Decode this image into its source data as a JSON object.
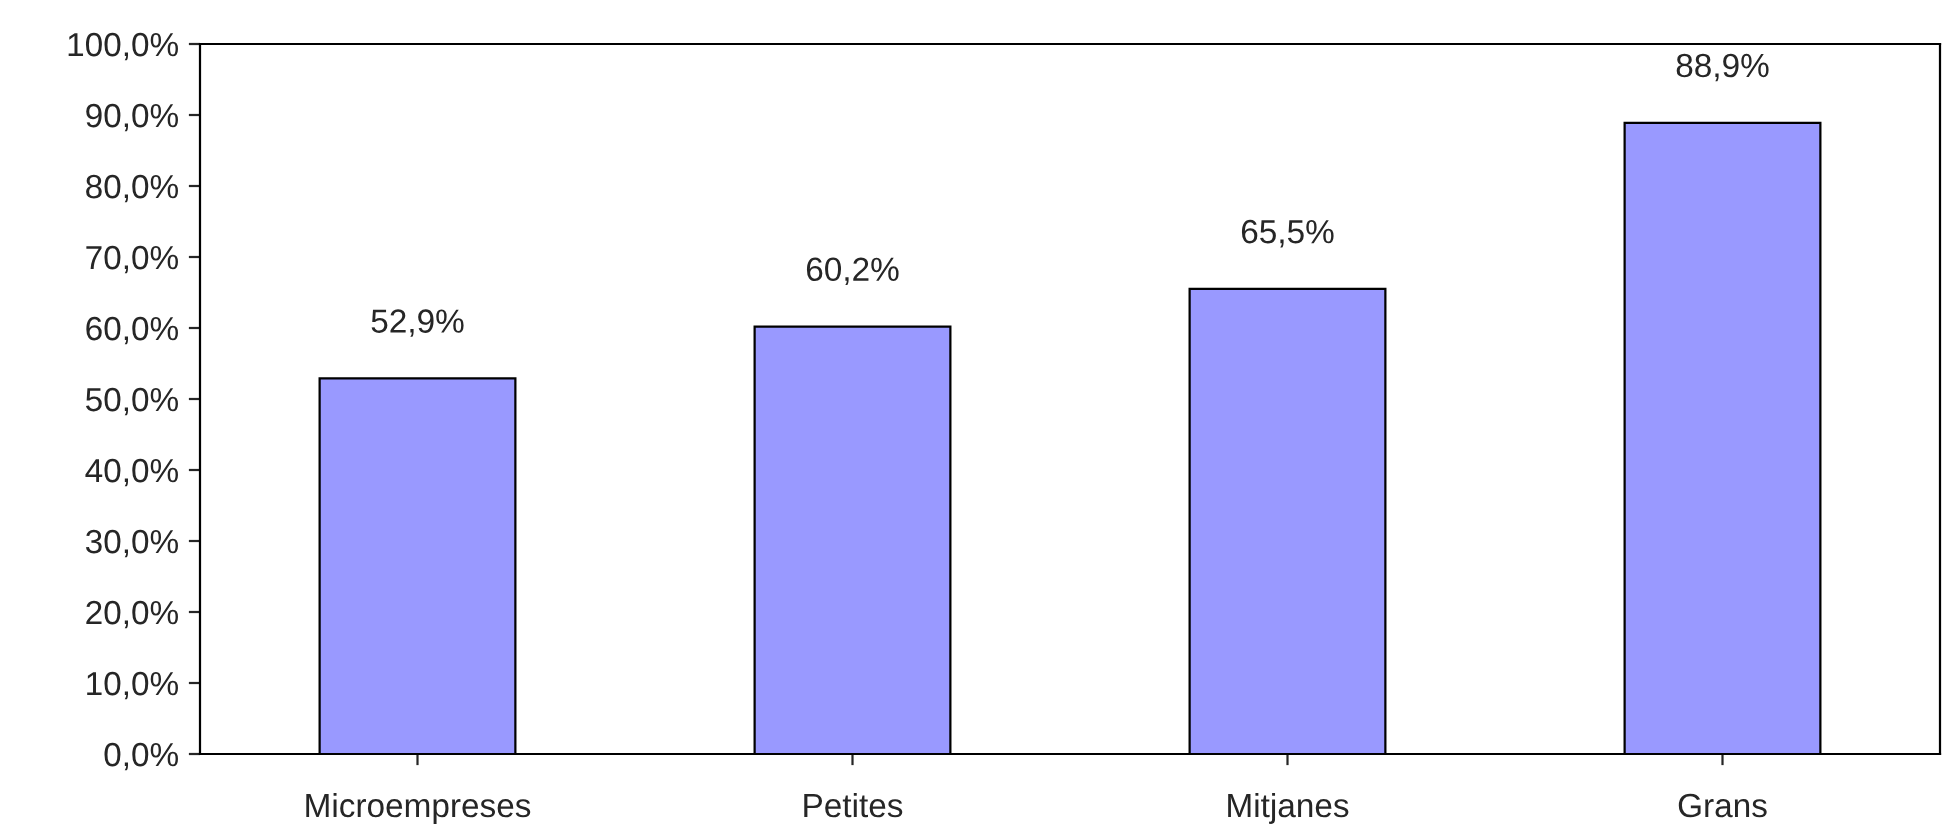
{
  "chart_data": {
    "type": "bar",
    "categories": [
      "Microempreses",
      "Petites",
      "Mitjanes",
      "Grans"
    ],
    "values": [
      52.9,
      60.2,
      65.5,
      88.9
    ],
    "value_labels": [
      "52,9%",
      "60,2%",
      "65,5%",
      "88,9%"
    ],
    "color": "#9999ff",
    "ylim": [
      0,
      100
    ],
    "yticks": [
      {
        "value": 0,
        "label": "0,0%"
      },
      {
        "value": 10,
        "label": "10,0%"
      },
      {
        "value": 20,
        "label": "20,0%"
      },
      {
        "value": 30,
        "label": "30,0%"
      },
      {
        "value": 40,
        "label": "40,0%"
      },
      {
        "value": 50,
        "label": "50,0%"
      },
      {
        "value": 60,
        "label": "60,0%"
      },
      {
        "value": 70,
        "label": "70,0%"
      },
      {
        "value": 80,
        "label": "80,0%"
      },
      {
        "value": 90,
        "label": "90,0%"
      },
      {
        "value": 100,
        "label": "100,0%"
      }
    ],
    "grid": false,
    "legend": false
  }
}
